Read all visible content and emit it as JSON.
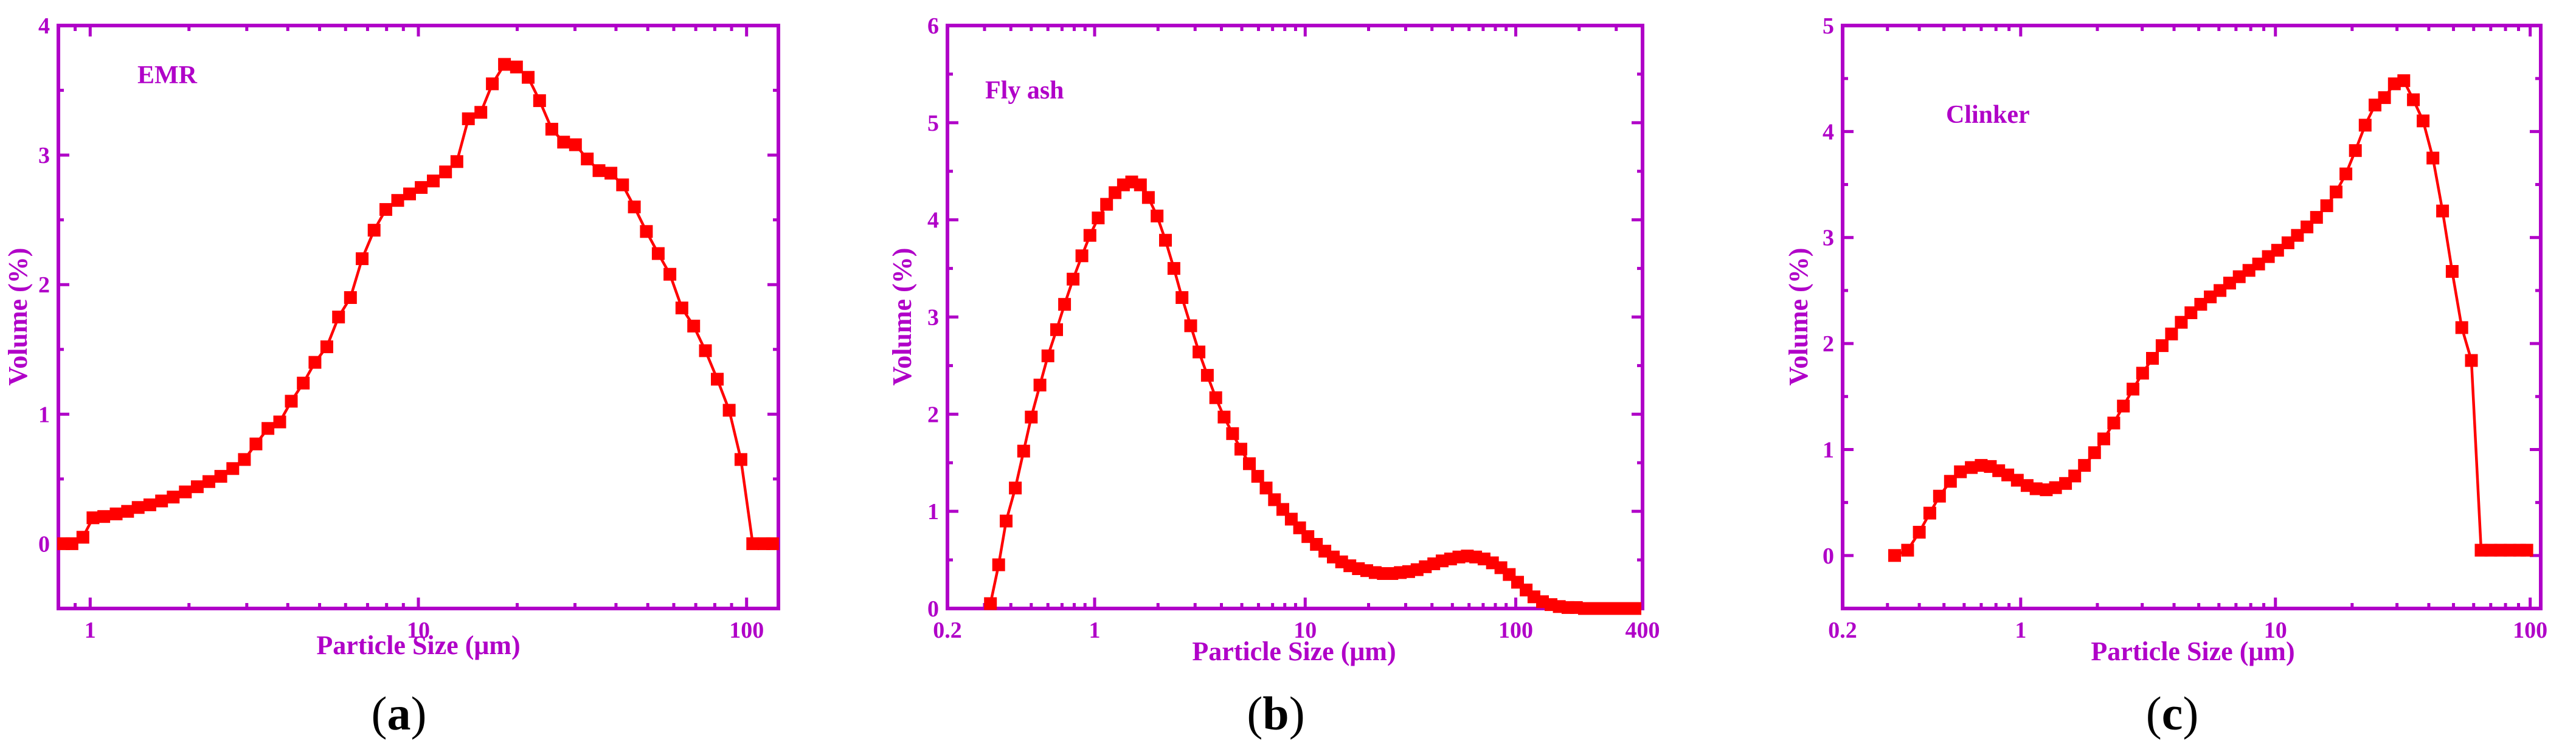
{
  "chart_data": [
    {
      "type": "line",
      "panel_label": "a",
      "annotation": "EMR",
      "xlabel": "Particle Size (μm)",
      "ylabel": "Volume (%)",
      "xscale": "log",
      "xlim": [
        0.8,
        125
      ],
      "ylim": [
        -0.5,
        4
      ],
      "xticks": [
        1,
        10,
        100
      ],
      "xtick_labels": [
        "1",
        "10",
        "100"
      ],
      "yticks": [
        0,
        1,
        2,
        3,
        4
      ],
      "ytick_labels": [
        "0",
        "1",
        "2",
        "3",
        "4"
      ],
      "series": [
        {
          "name": "EMR",
          "x": [
            0.83,
            0.88,
            0.95,
            1.02,
            1.1,
            1.2,
            1.3,
            1.4,
            1.52,
            1.65,
            1.79,
            1.95,
            2.12,
            2.3,
            2.5,
            2.72,
            2.95,
            3.2,
            3.48,
            3.78,
            4.1,
            4.46,
            4.84,
            5.26,
            5.71,
            6.21,
            6.74,
            7.33,
            7.96,
            8.65,
            9.4,
            10.2,
            11.1,
            12.1,
            13.1,
            14.2,
            15.5,
            16.8,
            18.3,
            19.9,
            21.6,
            23.4,
            25.5,
            27.7,
            30.1,
            32.7,
            35.5,
            38.6,
            41.9,
            45.5,
            49.5,
            53.8,
            58.4,
            63.5,
            69.0,
            74.9,
            81.4,
            88.5,
            96.1,
            104.4,
            113.0,
            120.0
          ],
          "y": [
            0.0,
            0.0,
            0.05,
            0.2,
            0.21,
            0.23,
            0.25,
            0.28,
            0.3,
            0.33,
            0.36,
            0.4,
            0.44,
            0.48,
            0.52,
            0.58,
            0.65,
            0.77,
            0.89,
            0.94,
            1.1,
            1.24,
            1.4,
            1.52,
            1.75,
            1.9,
            2.2,
            2.42,
            2.58,
            2.65,
            2.7,
            2.75,
            2.8,
            2.87,
            2.95,
            3.28,
            3.33,
            3.55,
            3.7,
            3.68,
            3.6,
            3.42,
            3.2,
            3.1,
            3.08,
            2.97,
            2.88,
            2.86,
            2.77,
            2.6,
            2.41,
            2.24,
            2.08,
            1.82,
            1.68,
            1.49,
            1.27,
            1.03,
            0.65,
            0.0,
            0.0,
            0.0
          ]
        }
      ]
    },
    {
      "type": "line",
      "panel_label": "b",
      "annotation": "Fly ash",
      "xlabel": "Particle Size (μm)",
      "ylabel": "Volume (%)",
      "xscale": "log",
      "xlim": [
        0.2,
        400
      ],
      "ylim": [
        0,
        6
      ],
      "xticks": [
        0.2,
        1,
        10,
        100,
        400
      ],
      "xtick_labels": [
        "0.2",
        "1",
        "10",
        "100",
        "400"
      ],
      "yticks": [
        0,
        1,
        2,
        3,
        4,
        5,
        6
      ],
      "ytick_labels": [
        "0",
        "1",
        "2",
        "3",
        "4",
        "5",
        "6"
      ],
      "series": [
        {
          "name": "Fly ash",
          "x": [
            0.32,
            0.35,
            0.38,
            0.42,
            0.46,
            0.5,
            0.55,
            0.6,
            0.66,
            0.72,
            0.79,
            0.87,
            0.95,
            1.04,
            1.14,
            1.25,
            1.37,
            1.5,
            1.65,
            1.8,
            1.98,
            2.17,
            2.38,
            2.6,
            2.86,
            3.13,
            3.43,
            3.76,
            4.12,
            4.52,
            4.95,
            5.43,
            5.95,
            6.52,
            7.15,
            7.83,
            8.59,
            9.41,
            10.3,
            11.3,
            12.4,
            13.6,
            14.9,
            16.3,
            17.9,
            19.6,
            21.5,
            23.5,
            25.8,
            28.3,
            31.0,
            34.0,
            37.2,
            40.8,
            44.7,
            49.0,
            53.7,
            58.9,
            64.5,
            70.7,
            77.5,
            85.0,
            93.1,
            102.0,
            112.0,
            122.0,
            134.0,
            147.0,
            161.0,
            177.0,
            194.0,
            212.0,
            233.0,
            255.0,
            280.0,
            306.0,
            336.0,
            368.0
          ],
          "y": [
            0.05,
            0.45,
            0.9,
            1.24,
            1.62,
            1.97,
            2.3,
            2.6,
            2.87,
            3.13,
            3.39,
            3.63,
            3.84,
            4.02,
            4.16,
            4.28,
            4.36,
            4.39,
            4.36,
            4.23,
            4.04,
            3.79,
            3.5,
            3.2,
            2.91,
            2.64,
            2.4,
            2.17,
            1.97,
            1.8,
            1.64,
            1.49,
            1.36,
            1.24,
            1.12,
            1.02,
            0.92,
            0.83,
            0.74,
            0.66,
            0.59,
            0.53,
            0.48,
            0.44,
            0.41,
            0.39,
            0.37,
            0.36,
            0.36,
            0.37,
            0.38,
            0.4,
            0.43,
            0.46,
            0.49,
            0.51,
            0.53,
            0.54,
            0.53,
            0.51,
            0.47,
            0.42,
            0.35,
            0.27,
            0.19,
            0.12,
            0.07,
            0.04,
            0.02,
            0.01,
            0.01,
            0.0,
            0.0,
            0.0,
            0.0,
            0.0,
            0.0,
            0.0
          ]
        }
      ]
    },
    {
      "type": "line",
      "panel_label": "c",
      "annotation": "Clinker",
      "xlabel": "Particle Size (μm)",
      "ylabel": "Volume (%)",
      "xscale": "log",
      "xlim": [
        0.2,
        110
      ],
      "ylim": [
        -0.5,
        5
      ],
      "xticks": [
        0.2,
        1,
        10,
        100
      ],
      "xtick_labels": [
        "0.2",
        "1",
        "10",
        "100"
      ],
      "yticks": [
        0,
        1,
        2,
        3,
        4,
        5
      ],
      "ytick_labels": [
        "0",
        "1",
        "2",
        "3",
        "4",
        "5"
      ],
      "series": [
        {
          "name": "Clinker",
          "x": [
            0.32,
            0.36,
            0.4,
            0.44,
            0.48,
            0.53,
            0.58,
            0.64,
            0.7,
            0.76,
            0.82,
            0.89,
            0.97,
            1.06,
            1.15,
            1.26,
            1.37,
            1.5,
            1.63,
            1.78,
            1.95,
            2.12,
            2.32,
            2.53,
            2.76,
            3.01,
            3.29,
            3.59,
            3.91,
            4.27,
            4.66,
            5.09,
            5.55,
            6.06,
            6.61,
            7.21,
            7.87,
            8.59,
            9.38,
            10.2,
            11.2,
            12.2,
            13.3,
            14.5,
            15.9,
            17.3,
            18.9,
            20.6,
            22.5,
            24.6,
            26.8,
            29.3,
            31.9,
            34.8,
            38.0,
            41.5,
            45.3,
            49.4,
            53.9,
            58.8,
            64.2,
            70.1,
            76.5,
            83.4,
            91.0,
            97.0
          ],
          "y": [
            0.0,
            0.05,
            0.22,
            0.4,
            0.56,
            0.7,
            0.79,
            0.83,
            0.85,
            0.84,
            0.8,
            0.76,
            0.71,
            0.66,
            0.63,
            0.62,
            0.64,
            0.68,
            0.75,
            0.85,
            0.97,
            1.1,
            1.25,
            1.41,
            1.57,
            1.72,
            1.86,
            1.98,
            2.09,
            2.2,
            2.29,
            2.37,
            2.44,
            2.5,
            2.57,
            2.63,
            2.69,
            2.75,
            2.82,
            2.88,
            2.95,
            3.02,
            3.1,
            3.19,
            3.3,
            3.43,
            3.6,
            3.82,
            4.06,
            4.25,
            4.32,
            4.45,
            4.48,
            4.3,
            4.1,
            3.75,
            3.25,
            2.68,
            2.15,
            1.84,
            0.05,
            0.05,
            0.05,
            0.05,
            0.05,
            0.05
          ]
        }
      ]
    }
  ]
}
